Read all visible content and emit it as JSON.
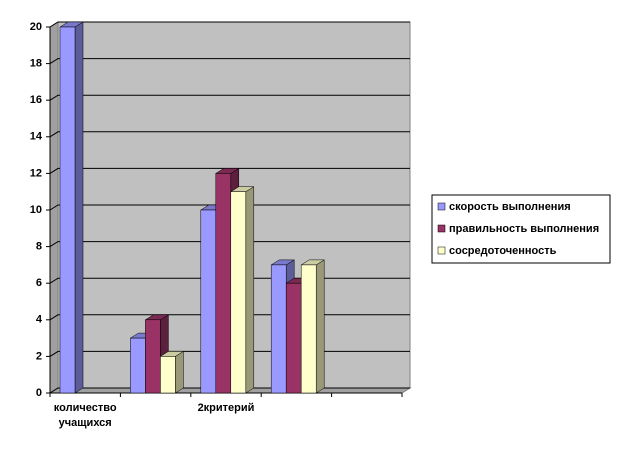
{
  "chart_data": {
    "type": "bar3d",
    "categories": [
      "количество учащихся",
      null,
      "2критерий",
      null,
      null
    ],
    "series": [
      {
        "name": "скорость выполнения",
        "color": "#9999ff",
        "values": [
          20,
          3,
          10,
          7,
          null
        ]
      },
      {
        "name": "правильность выполнения",
        "color": "#993366",
        "values": [
          null,
          4,
          12,
          6,
          null
        ]
      },
      {
        "name": "сосредоточенность",
        "color": "#ffffcc",
        "values": [
          null,
          2,
          11,
          7,
          null
        ]
      }
    ],
    "ylim": [
      0,
      20
    ],
    "yticks": [
      0,
      2,
      4,
      6,
      8,
      10,
      12,
      14,
      16,
      18,
      20
    ],
    "grid": true,
    "legend": "right"
  }
}
